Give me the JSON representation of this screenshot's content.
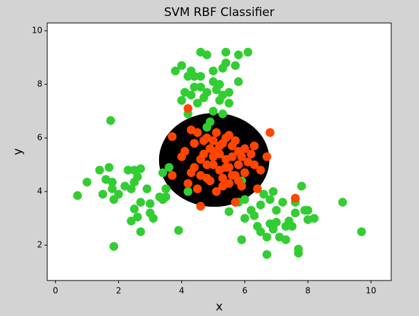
{
  "chart_data": {
    "type": "scatter",
    "title": "SVM RBF Classifier",
    "x_label": "x",
    "y_label": "y",
    "xlim": [
      -0.26,
      10.64
    ],
    "ylim": [
      0.68,
      10.29
    ],
    "xticks": [
      0,
      2,
      4,
      6,
      8,
      10
    ],
    "yticks": [
      2,
      4,
      6,
      8,
      10
    ],
    "grid": false,
    "decision_region": {
      "shape": "ellipse",
      "cx": 5.03,
      "cy": 5.18,
      "rx": 1.75,
      "ry": 1.75,
      "color": "#000000"
    },
    "series": [
      {
        "color": "#32cd32",
        "x": [
          4.6,
          4.8,
          5.4,
          5.8,
          6.1,
          3.8,
          4.0,
          4.3,
          4.4,
          4.2,
          4.6,
          5.0,
          5.3,
          5.4,
          5.7,
          5.0,
          5.2,
          5.8,
          4.1,
          4.4,
          4.6,
          4.8,
          5.1,
          5.3,
          5.5,
          4.3,
          4.5,
          4.7,
          5.2,
          5.5,
          4.0,
          4.2,
          5.0,
          5.3,
          4.9,
          4.8,
          0.7,
          1.0,
          1.4,
          1.5,
          1.7,
          1.75,
          1.8,
          1.6,
          1.8,
          1.85,
          1.85,
          2.0,
          2.2,
          2.3,
          2.4,
          2.5,
          2.5,
          2.6,
          2.7,
          2.4,
          2.5,
          2.6,
          2.7,
          2.7,
          2.9,
          3.0,
          3.1,
          3.0,
          3.3,
          3.4,
          3.4,
          3.5,
          3.6,
          3.5,
          3.9,
          4.2,
          5.5,
          5.8,
          5.9,
          6.0,
          6.0,
          6.2,
          6.3,
          6.4,
          6.5,
          6.5,
          6.6,
          6.7,
          6.7,
          6.8,
          6.8,
          6.9,
          6.9,
          7.0,
          7.0,
          7.1,
          7.2,
          7.3,
          7.3,
          7.4,
          7.5,
          7.6,
          7.6,
          7.7,
          7.7,
          7.8,
          7.9,
          8.0,
          8.0,
          8.2,
          9.1,
          9.7,
          5.9
        ],
        "y": [
          9.2,
          9.1,
          9.2,
          9.1,
          9.2,
          8.5,
          8.7,
          8.5,
          8.3,
          8.3,
          8.3,
          8.5,
          8.6,
          8.8,
          8.7,
          8.1,
          8.0,
          8.1,
          7.7,
          7.9,
          7.9,
          7.7,
          7.8,
          7.6,
          7.7,
          7.6,
          7.3,
          7.5,
          7.4,
          7.3,
          7.4,
          6.9,
          7.0,
          6.9,
          6.6,
          6.4,
          3.85,
          4.35,
          4.8,
          3.9,
          4.9,
          6.65,
          4.35,
          4.45,
          4.1,
          3.7,
          1.95,
          3.9,
          4.2,
          4.8,
          4.1,
          4.8,
          4.35,
          4.55,
          4.85,
          2.9,
          3.35,
          3.05,
          3.6,
          2.5,
          4.1,
          3.55,
          3.0,
          3.2,
          3.8,
          3.7,
          4.7,
          4.1,
          4.9,
          3.8,
          2.55,
          4.0,
          3.25,
          3.6,
          2.2,
          3.0,
          3.7,
          3.3,
          3.1,
          2.7,
          3.5,
          2.5,
          3.9,
          1.65,
          2.3,
          2.8,
          3.7,
          2.6,
          4.0,
          3.3,
          2.85,
          2.3,
          3.6,
          2.7,
          2.2,
          2.9,
          2.7,
          3.2,
          3.6,
          1.85,
          1.7,
          4.2,
          3.3,
          2.95,
          3.3,
          3.0,
          3.6,
          2.5,
          4.4
        ]
      },
      {
        "color": "#ff4500",
        "x": [
          4.2,
          6.8,
          4.6,
          7.6,
          3.7,
          4.0,
          4.1,
          4.3,
          4.4,
          4.5,
          4.6,
          4.7,
          4.8,
          4.9,
          5.0,
          5.1,
          5.2,
          5.3,
          5.4,
          5.5,
          5.6,
          5.7,
          5.8,
          5.9,
          6.0,
          6.2,
          6.3,
          6.5,
          6.7,
          4.2,
          4.4,
          4.6,
          4.8,
          5.0,
          5.2,
          5.4,
          5.6,
          5.8,
          6.0,
          6.3,
          4.5,
          4.9,
          5.1,
          5.3,
          5.5,
          5.7,
          5.9,
          4.3,
          4.7,
          5.0,
          5.2,
          5.4,
          5.6,
          5.8,
          6.1,
          4.8,
          5.1,
          5.3,
          5.5,
          5.7,
          3.7,
          6.4
        ],
        "y": [
          7.1,
          6.2,
          3.45,
          3.75,
          6.05,
          5.3,
          5.5,
          6.3,
          5.8,
          6.2,
          4.6,
          5.9,
          6.0,
          5.6,
          5.9,
          6.2,
          5.4,
          5.8,
          6.0,
          6.1,
          5.7,
          5.9,
          5.5,
          5.3,
          5.6,
          5.4,
          5.0,
          4.8,
          5.3,
          4.3,
          4.9,
          5.2,
          4.5,
          5.0,
          4.8,
          5.2,
          4.6,
          5.0,
          4.7,
          5.7,
          4.1,
          4.4,
          4.0,
          4.5,
          4.3,
          4.6,
          4.2,
          4.7,
          5.4,
          5.3,
          5.7,
          4.9,
          5.3,
          4.4,
          5.1,
          5.0,
          5.5,
          4.2,
          4.9,
          3.6,
          4.6,
          4.1
        ]
      }
    ]
  }
}
